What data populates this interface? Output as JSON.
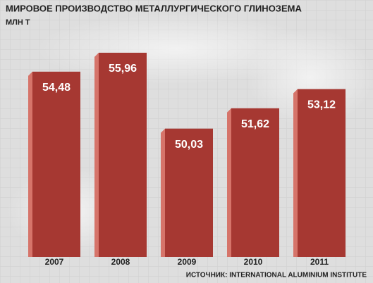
{
  "chart_data": {
    "type": "bar",
    "title": "МИРОВОЕ ПРОИЗВОДСТВО МЕТАЛЛУРГИЧЕСКОГО ГЛИНОЗЕМА",
    "subtitle": "МЛН Т",
    "source": "ИСТОЧНИК: INTERNATIONAL ALUMINIUM INSTITUTE",
    "categories": [
      "2007",
      "2008",
      "2009",
      "2010",
      "2011"
    ],
    "values": [
      54.48,
      55.96,
      50.03,
      51.62,
      53.12
    ],
    "value_labels": [
      "54,48",
      "55,96",
      "50,03",
      "51,62",
      "53,12"
    ],
    "color": "#a63832",
    "ylim": [
      40,
      57
    ]
  }
}
